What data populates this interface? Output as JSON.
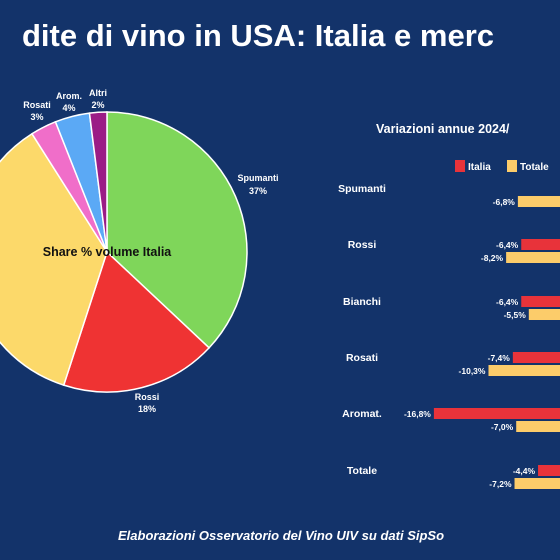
{
  "title": "dite di vino in USA: Italia e merc",
  "footer": "Elaborazioni Osservatorio del Vino UIV su dati SipSo",
  "colors": {
    "background": "#13336a",
    "italia": "#e8333a",
    "totale": "#fccc6a"
  },
  "chart_data": [
    {
      "type": "pie",
      "title": "Share % volume Italia",
      "slices": [
        {
          "label": "Spumanti",
          "value": 37,
          "text": "37%",
          "color": "#7fd65a"
        },
        {
          "label": "Rossi",
          "value": 18,
          "text": "18%",
          "color": "#ef3333"
        },
        {
          "label": "Bianchi",
          "value": 36,
          "text": "",
          "color": "#fcd96a"
        },
        {
          "label": "Rosati",
          "value": 3,
          "text": "3%",
          "color": "#f06ec9"
        },
        {
          "label": "Arom.",
          "value": 4,
          "text": "4%",
          "color": "#5ba9f5"
        },
        {
          "label": "Altri",
          "value": 2,
          "text": "2%",
          "color": "#9b1c86"
        }
      ]
    },
    {
      "type": "bar",
      "title": "Variazioni annue 2024/",
      "legend": [
        "Italia",
        "Totale"
      ],
      "categories": [
        "Spumanti",
        "Rossi",
        "Bianchi",
        "Rosati",
        "Aromat.",
        "Totale"
      ],
      "series": [
        {
          "name": "Italia",
          "values": [
            null,
            -6.4,
            -6.4,
            -7.4,
            -16.8,
            -4.4
          ],
          "labels": [
            "",
            "-6,4%",
            "-6,4%",
            "-7,4%",
            "-16,8%",
            "-4,4%"
          ]
        },
        {
          "name": "Totale",
          "values": [
            -6.8,
            -8.2,
            -5.5,
            -10.3,
            -7.0,
            -7.2
          ],
          "labels": [
            "-6,8%",
            "-8,2%",
            "-5,5%",
            "-10,3%",
            "-7,0%",
            "-7,2%"
          ]
        }
      ]
    }
  ]
}
